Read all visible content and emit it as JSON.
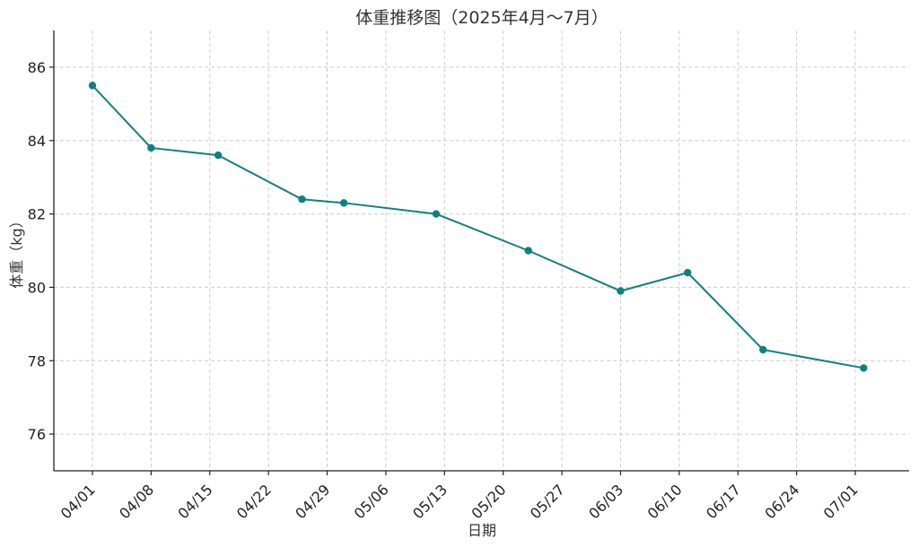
{
  "chart_data": {
    "type": "line",
    "title": "体重推移图（2025年4月〜7月）",
    "xlabel": "日期",
    "ylabel": "体重（kg）",
    "x_ticks": [
      "04/01",
      "04/08",
      "04/15",
      "04/22",
      "04/29",
      "05/06",
      "05/13",
      "05/20",
      "05/27",
      "06/03",
      "06/10",
      "06/17",
      "06/24",
      "07/01"
    ],
    "y_ticks": [
      76,
      78,
      80,
      82,
      84,
      86
    ],
    "ylim": [
      75,
      87
    ],
    "grid": true,
    "color": "#0f8080",
    "series": [
      {
        "x": [
          "2025-04-01",
          "2025-04-08",
          "2025-04-16",
          "2025-04-26",
          "2025-05-01",
          "2025-05-12",
          "2025-05-23",
          "2025-06-03",
          "2025-06-11",
          "2025-06-20",
          "2025-07-02"
        ],
        "values": [
          85.5,
          83.8,
          83.6,
          82.4,
          82.3,
          82.0,
          81.0,
          79.9,
          80.4,
          78.3,
          77.8
        ]
      }
    ]
  }
}
